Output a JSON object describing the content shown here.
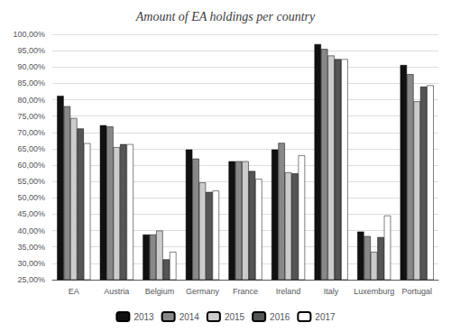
{
  "chart_data": {
    "type": "bar",
    "title": "Amount of EA holdings per country",
    "categories": [
      "EA",
      "Austria",
      "Belgium",
      "Germany",
      "France",
      "Ireland",
      "Italy",
      "Luxemburg",
      "Portugal"
    ],
    "series": [
      {
        "name": "2013",
        "color": "#111111",
        "values": [
          0.812,
          0.722,
          0.388,
          0.648,
          0.612,
          0.648,
          0.97,
          0.397,
          0.906
        ]
      },
      {
        "name": "2014",
        "color": "#888888",
        "values": [
          0.78,
          0.718,
          0.388,
          0.62,
          0.612,
          0.668,
          0.955,
          0.383,
          0.878
        ]
      },
      {
        "name": "2015",
        "color": "#cccccc",
        "values": [
          0.744,
          0.655,
          0.4,
          0.547,
          0.612,
          0.578,
          0.935,
          0.335,
          0.795
        ]
      },
      {
        "name": "2016",
        "color": "#555555",
        "values": [
          0.712,
          0.664,
          0.312,
          0.518,
          0.582,
          0.575,
          0.924,
          0.38,
          0.84
        ]
      },
      {
        "name": "2017",
        "color": "#ffffff",
        "values": [
          0.667,
          0.664,
          0.335,
          0.522,
          0.558,
          0.63,
          0.924,
          0.446,
          0.844
        ]
      }
    ],
    "ylim": [
      0.25,
      1.0
    ],
    "yticks": [
      {
        "value": 0.25,
        "label": "25,00%"
      },
      {
        "value": 0.3,
        "label": "30,00%"
      },
      {
        "value": 0.35,
        "label": "35,00%"
      },
      {
        "value": 0.4,
        "label": "40,00%"
      },
      {
        "value": 0.45,
        "label": "45,00%"
      },
      {
        "value": 0.5,
        "label": "50,00%"
      },
      {
        "value": 0.55,
        "label": "55,00%"
      },
      {
        "value": 0.6,
        "label": "60,00%"
      },
      {
        "value": 0.65,
        "label": "65,00%"
      },
      {
        "value": 0.7,
        "label": "70,00%"
      },
      {
        "value": 0.75,
        "label": "75,00%"
      },
      {
        "value": 0.8,
        "label": "80,00%"
      },
      {
        "value": 0.85,
        "label": "85,00%"
      },
      {
        "value": 0.9,
        "label": "90,00%"
      },
      {
        "value": 0.95,
        "label": "95,00%"
      },
      {
        "value": 1.0,
        "label": "100,00%"
      }
    ],
    "grid": true,
    "legend": "bottom"
  }
}
